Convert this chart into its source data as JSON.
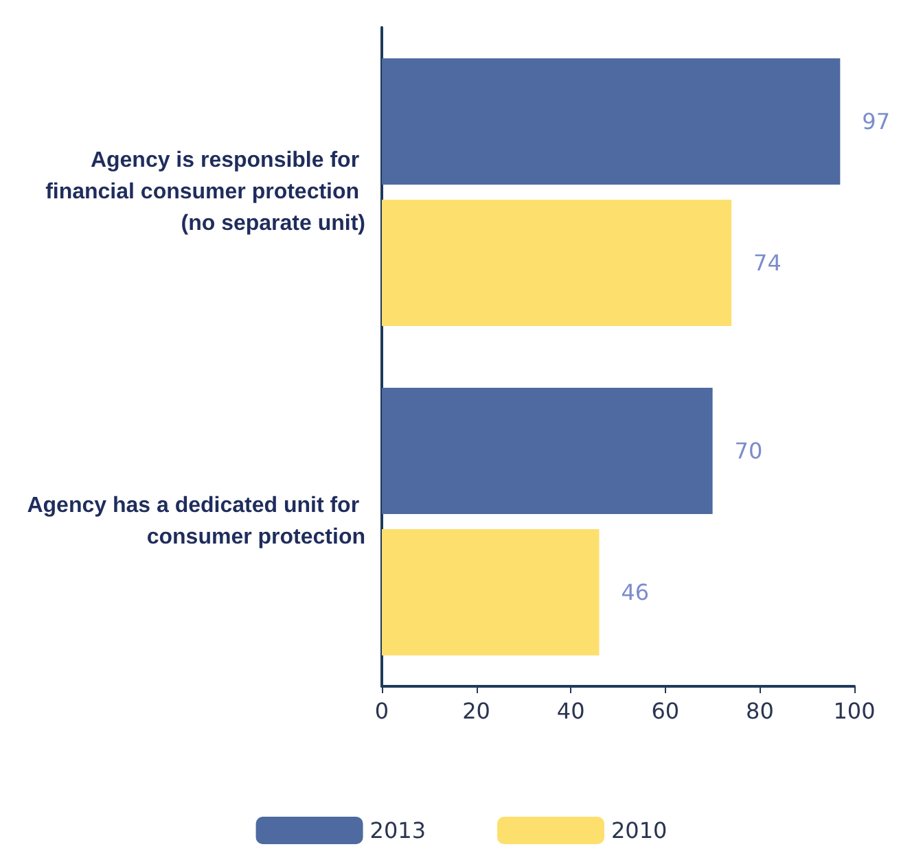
{
  "chart_data": {
    "type": "bar",
    "orientation": "horizontal",
    "categories": [
      "Agency is responsible for financial consumer protection (no separate unit)",
      "Agency has a dedicated unit for consumer protection"
    ],
    "series": [
      {
        "name": "2013",
        "color": "#4e6aa0",
        "values": [
          97,
          70
        ]
      },
      {
        "name": "2010",
        "color": "#fddf6e",
        "values": [
          74,
          46
        ]
      }
    ],
    "xlim": [
      0,
      100
    ],
    "xticks": [
      0,
      20,
      40,
      60,
      80,
      100
    ],
    "grid": false,
    "legend": "bottom",
    "data_labels": true
  }
}
